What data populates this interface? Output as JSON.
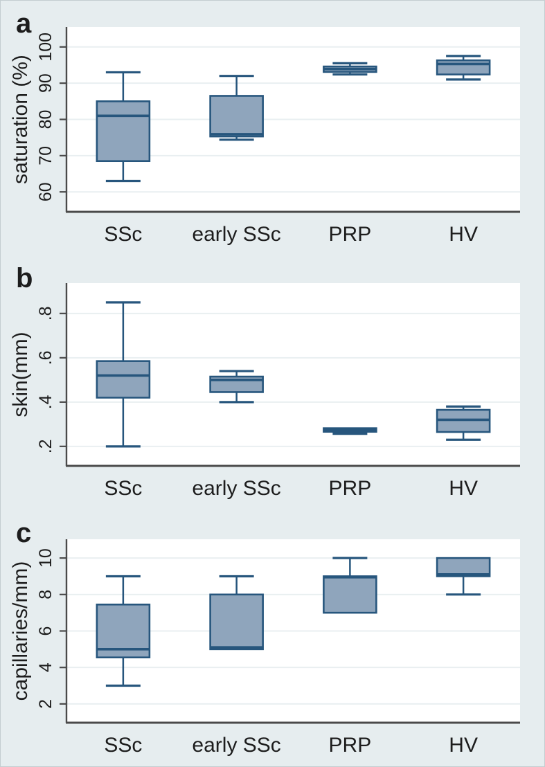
{
  "figure": {
    "panel_labels": [
      "a",
      "b",
      "c"
    ],
    "categories": [
      "SSc",
      "early SSc",
      "PRP",
      "HV"
    ]
  },
  "style": {
    "background": "#e6edef",
    "plot_background": "#ffffff",
    "gridline_color": "#e9eff1",
    "box_fill": "#8fa5bc",
    "box_stroke": "#27567d",
    "axis_color": "#4a4a4a",
    "text_color": "#1d1d1d"
  },
  "chart_data": [
    {
      "type": "box",
      "panel_label": "a",
      "ylabel": "saturation (%)",
      "categories": [
        "SSc",
        "early SSc",
        "PRP",
        "HV"
      ],
      "yticks": [
        60,
        70,
        80,
        90,
        100
      ],
      "ytick_labels": [
        "60",
        "70",
        "80",
        "90",
        "100"
      ],
      "ylim": [
        54.5,
        105.5
      ],
      "grid": true,
      "boxes": [
        {
          "category": "SSc",
          "min": 63,
          "q1": 68.5,
          "median": 81,
          "q3": 85,
          "max": 93
        },
        {
          "category": "early SSc",
          "min": 74.4,
          "q1": 75.3,
          "median": 75.9,
          "q3": 86.5,
          "max": 92
        },
        {
          "category": "PRP",
          "min": 92.4,
          "q1": 93.1,
          "median": 93.9,
          "q3": 94.6,
          "max": 95.5
        },
        {
          "category": "HV",
          "min": 91,
          "q1": 92.4,
          "median": 95.3,
          "q3": 96.3,
          "max": 97.5
        }
      ]
    },
    {
      "type": "box",
      "panel_label": "b",
      "ylabel": "skin(mm)",
      "categories": [
        "SSc",
        "early SSc",
        "PRP",
        "HV"
      ],
      "yticks": [
        0.2,
        0.4,
        0.6,
        0.8
      ],
      "ytick_labels": [
        ".2",
        ".4",
        ".6",
        ".8"
      ],
      "ylim": [
        0.112,
        0.937
      ],
      "grid": true,
      "boxes": [
        {
          "category": "SSc",
          "min": 0.2,
          "q1": 0.42,
          "median": 0.52,
          "q3": 0.585,
          "max": 0.85
        },
        {
          "category": "early SSc",
          "min": 0.4,
          "q1": 0.445,
          "median": 0.5,
          "q3": 0.515,
          "max": 0.54
        },
        {
          "category": "PRP",
          "min": 0.257,
          "q1": 0.266,
          "median": 0.274,
          "q3": 0.282,
          "max": 0.282
        },
        {
          "category": "HV",
          "min": 0.23,
          "q1": 0.265,
          "median": 0.32,
          "q3": 0.365,
          "max": 0.38
        }
      ]
    },
    {
      "type": "box",
      "panel_label": "c",
      "ylabel": "capillaries/mm)",
      "categories": [
        "SSc",
        "early SSc",
        "PRP",
        "HV"
      ],
      "yticks": [
        2,
        4,
        6,
        8,
        10
      ],
      "ytick_labels": [
        "2",
        "4",
        "6",
        "8",
        "10"
      ],
      "ylim": [
        0.97,
        11.03
      ],
      "grid": true,
      "boxes": [
        {
          "category": "SSc",
          "min": 3,
          "q1": 4.55,
          "median": 5,
          "q3": 7.45,
          "max": 9
        },
        {
          "category": "early SSc",
          "min": 5,
          "q1": 5,
          "median": 5.1,
          "q3": 8,
          "max": 9
        },
        {
          "category": "PRP",
          "min": 7,
          "q1": 7,
          "median": 8.95,
          "q3": 9,
          "max": 10
        },
        {
          "category": "HV",
          "min": 8,
          "q1": 9,
          "median": 9.1,
          "q3": 10,
          "max": 10
        }
      ]
    }
  ]
}
